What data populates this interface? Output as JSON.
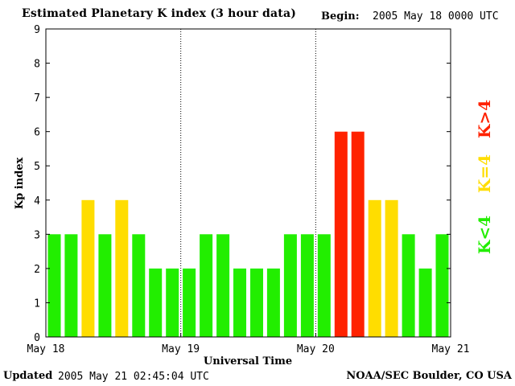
{
  "header": {
    "title": "Estimated Planetary K index (3 hour data)",
    "begin_label": "Begin:",
    "begin_date": "2005 May 18 0000 UTC"
  },
  "footer": {
    "updated_label": "Updated",
    "updated_date": "2005 May 21 02:45:04 UTC",
    "source": "NOAA/SEC Boulder, CO USA"
  },
  "legend": [
    {
      "label": "K<4",
      "color": "#22ee00"
    },
    {
      "label": "K=4",
      "color": "#ffdd00"
    },
    {
      "label": "K>4",
      "color": "#ff2200"
    }
  ],
  "colors": {
    "low": "#22ee00",
    "equal": "#ffdd00",
    "high": "#ff2200"
  },
  "chart_data": {
    "type": "bar",
    "title": "Estimated Planetary K index (3 hour data)",
    "xlabel": "Universal Time",
    "ylabel": "Kp index",
    "ylim": [
      0,
      9
    ],
    "yticks": [
      0,
      1,
      2,
      3,
      4,
      5,
      6,
      7,
      8,
      9
    ],
    "xtick_labels": [
      "May 18",
      "May 19",
      "May 20",
      "May 21"
    ],
    "day_dividers": [
      "May 19",
      "May 20"
    ],
    "values": [
      3,
      3,
      4,
      3,
      4,
      3,
      2,
      2,
      2,
      3,
      3,
      2,
      2,
      2,
      3,
      3,
      3,
      6,
      6,
      4,
      4,
      3,
      2,
      3
    ],
    "interval_hours": 3
  }
}
